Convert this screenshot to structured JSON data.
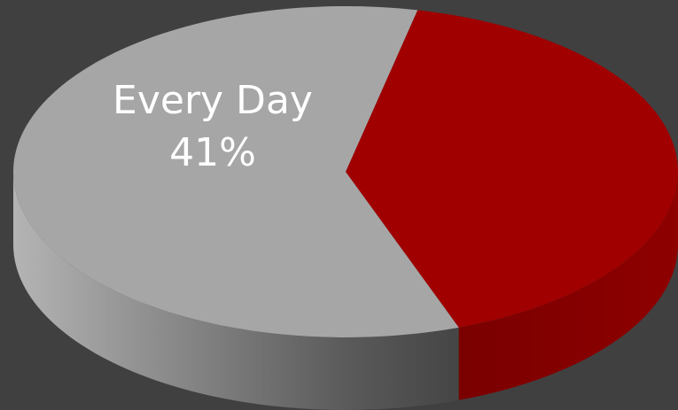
{
  "chart_data": {
    "type": "pie",
    "style": "3d",
    "background": "#404040",
    "slices": [
      {
        "name": "Every Day",
        "percent_label": "41%",
        "value": 41,
        "color": "#a00000",
        "labeled": true
      },
      {
        "name": "",
        "percent_label": "",
        "value": 59,
        "color": "#a6a6a6",
        "labeled": false
      }
    ],
    "start_angle_deg": 282.5,
    "legend": "none",
    "title": ""
  }
}
